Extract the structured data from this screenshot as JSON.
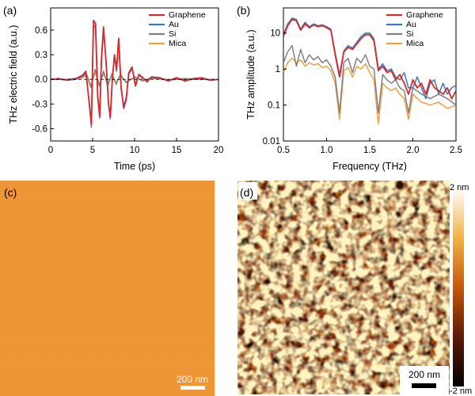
{
  "chart_data": [
    {
      "panel": "(a)",
      "type": "line",
      "xlabel": "Time (ps)",
      "ylabel": "THz electric field (a.u.)",
      "xlim": [
        0,
        20
      ],
      "ylim": [
        -0.75,
        0.87
      ],
      "xticks": [
        0,
        5,
        10,
        15,
        20
      ],
      "yticks": [
        -0.6,
        -0.3,
        0.0,
        0.3,
        0.6
      ],
      "ytick_labels": [
        "-0.6",
        "-0.3",
        "0.0",
        "0.3",
        "0.6"
      ],
      "legend_position": "top-right",
      "series": [
        {
          "name": "Graphene",
          "color": "#d62a2a",
          "x": [
            0,
            1,
            2,
            3,
            3.8,
            4.2,
            4.6,
            4.85,
            5.1,
            5.35,
            5.6,
            5.85,
            6.05,
            6.3,
            6.6,
            6.9,
            7.1,
            7.35,
            7.6,
            7.85,
            8.1,
            8.4,
            8.7,
            9,
            9.3,
            9.7,
            10.1,
            10.5,
            11,
            11.5,
            12,
            13,
            14,
            15,
            16,
            17,
            18,
            19,
            20
          ],
          "y": [
            0,
            0.01,
            -0.01,
            0.01,
            0.05,
            0.1,
            -0.3,
            -0.55,
            0.72,
            0.68,
            -0.2,
            -0.45,
            0.25,
            0.64,
            0.2,
            -0.3,
            -0.46,
            0.0,
            0.3,
            0.12,
            0.5,
            -0.1,
            -0.35,
            -0.25,
            0.08,
            0.15,
            -0.08,
            0.06,
            0.02,
            -0.03,
            0.03,
            0.02,
            -0.02,
            0.02,
            -0.02,
            0.01,
            0.02,
            -0.01,
            0.0
          ]
        },
        {
          "name": "Au",
          "color": "#3b78c0",
          "x": [
            0,
            1,
            2,
            3,
            3.8,
            4.2,
            4.6,
            4.85,
            5.1,
            5.35,
            5.6,
            5.85,
            6.05,
            6.3,
            6.6,
            6.9,
            7.1,
            7.35,
            7.6,
            7.85,
            8.1,
            8.4,
            8.7,
            9,
            9.3,
            9.7,
            10.1,
            10.5,
            11,
            11.5,
            12,
            13,
            14,
            15,
            16,
            17,
            18,
            19,
            20
          ],
          "y": [
            0,
            0.0,
            -0.01,
            0.0,
            0.04,
            0.08,
            -0.28,
            -0.58,
            0.66,
            0.63,
            -0.22,
            -0.47,
            0.2,
            0.6,
            0.22,
            -0.28,
            -0.48,
            -0.02,
            0.28,
            0.1,
            0.45,
            -0.12,
            -0.33,
            -0.22,
            0.06,
            0.13,
            -0.06,
            0.05,
            0.01,
            -0.02,
            0.02,
            0.01,
            -0.01,
            0.01,
            -0.01,
            0.0,
            0.01,
            -0.01,
            0.0
          ]
        },
        {
          "name": "Si",
          "color": "#808080",
          "x": [
            0,
            2,
            3.5,
            4.3,
            4.8,
            5.3,
            5.8,
            6.3,
            6.8,
            7.3,
            7.8,
            8.3,
            9,
            10,
            11,
            12,
            14,
            16,
            18,
            20
          ],
          "y": [
            0,
            0.0,
            0.02,
            0.06,
            -0.1,
            0.12,
            -0.08,
            0.1,
            -0.08,
            0.07,
            -0.06,
            0.06,
            -0.04,
            0.03,
            -0.02,
            0.02,
            -0.01,
            0.01,
            0.0,
            0.0
          ]
        },
        {
          "name": "Mica",
          "color": "#f0a042",
          "x": [
            0,
            2,
            3.5,
            4.3,
            4.8,
            5.3,
            5.8,
            6.3,
            6.8,
            7.3,
            7.8,
            8.3,
            9,
            10,
            11,
            12,
            14,
            16,
            18,
            20
          ],
          "y": [
            0,
            0.0,
            0.01,
            0.04,
            -0.07,
            0.08,
            -0.06,
            0.07,
            -0.05,
            0.05,
            -0.04,
            0.04,
            -0.03,
            0.02,
            -0.01,
            0.01,
            0.0,
            0.01,
            0.0,
            0.0
          ]
        }
      ]
    },
    {
      "panel": "(b)",
      "type": "line",
      "yscale": "log",
      "xlabel": "Frequency (THz)",
      "ylabel": "THz amplitude (a.u.)",
      "xlim": [
        0.5,
        2.5
      ],
      "ylim": [
        0.01,
        50
      ],
      "xticks": [
        0.5,
        1.0,
        1.5,
        2.0,
        2.5
      ],
      "xtick_labels": [
        "0.5",
        "1.0",
        "1.5",
        "2.0",
        "2.5"
      ],
      "yticks": [
        0.01,
        0.1,
        1,
        10
      ],
      "ytick_labels": [
        "0.01",
        "0.1",
        "1",
        "10"
      ],
      "legend_position": "top-right",
      "series": [
        {
          "name": "Graphene",
          "color": "#d62a2a",
          "x": [
            0.5,
            0.55,
            0.6,
            0.65,
            0.7,
            0.75,
            0.8,
            0.85,
            0.9,
            0.95,
            1.0,
            1.05,
            1.1,
            1.15,
            1.2,
            1.25,
            1.3,
            1.35,
            1.4,
            1.45,
            1.5,
            1.55,
            1.6,
            1.65,
            1.7,
            1.75,
            1.8,
            1.85,
            1.9,
            1.95,
            2.0,
            2.05,
            2.1,
            2.15,
            2.2,
            2.25,
            2.3,
            2.35,
            2.4,
            2.45,
            2.5
          ],
          "y": [
            8,
            16,
            24,
            22,
            12,
            18,
            14,
            17,
            15,
            16,
            14,
            12,
            2.5,
            0.6,
            3,
            4,
            3.5,
            5,
            7,
            9,
            9,
            6,
            0.9,
            1.2,
            0.8,
            0.9,
            0.5,
            0.7,
            0.4,
            0.2,
            0.5,
            0.3,
            0.4,
            0.2,
            0.5,
            0.3,
            0.25,
            0.2,
            0.3,
            0.15,
            0.25
          ]
        },
        {
          "name": "Au",
          "color": "#3b78c0",
          "x": [
            0.5,
            0.55,
            0.6,
            0.65,
            0.7,
            0.75,
            0.8,
            0.85,
            0.9,
            0.95,
            1.0,
            1.05,
            1.1,
            1.15,
            1.2,
            1.25,
            1.3,
            1.35,
            1.4,
            1.45,
            1.5,
            1.55,
            1.6,
            1.65,
            1.7,
            1.75,
            1.8,
            1.85,
            1.9,
            1.95,
            2.0,
            2.05,
            2.1,
            2.15,
            2.2,
            2.25,
            2.3,
            2.35,
            2.4,
            2.45,
            2.5
          ],
          "y": [
            9,
            18,
            26,
            24,
            13,
            20,
            15,
            18,
            16,
            17,
            15,
            13,
            2.8,
            0.7,
            3.2,
            4.5,
            3.8,
            5.5,
            8,
            10,
            10,
            7,
            1.0,
            1.4,
            0.9,
            1.0,
            0.6,
            0.5,
            0.8,
            0.3,
            0.3,
            0.6,
            0.3,
            0.15,
            0.4,
            0.5,
            0.2,
            0.4,
            0.2,
            0.3,
            0.35
          ]
        },
        {
          "name": "Si",
          "color": "#808080",
          "x": [
            0.5,
            0.55,
            0.6,
            0.65,
            0.7,
            0.75,
            0.8,
            0.85,
            0.9,
            0.95,
            1.0,
            1.05,
            1.1,
            1.15,
            1.2,
            1.25,
            1.3,
            1.35,
            1.4,
            1.45,
            1.5,
            1.55,
            1.6,
            1.65,
            1.7,
            1.75,
            1.8,
            1.85,
            1.9,
            1.95,
            2.0,
            2.1,
            2.2,
            2.3,
            2.4,
            2.5
          ],
          "y": [
            1.5,
            3,
            4.5,
            1.2,
            3.5,
            1.5,
            2.5,
            1.8,
            2.2,
            1.5,
            1.8,
            1.2,
            0.6,
            0.06,
            1.5,
            2.0,
            0.8,
            2.0,
            1.5,
            2.5,
            1.2,
            1.0,
            0.06,
            0.7,
            0.5,
            0.4,
            0.5,
            0.3,
            0.25,
            0.06,
            0.3,
            0.2,
            0.15,
            0.2,
            0.15,
            0.1
          ]
        },
        {
          "name": "Mica",
          "color": "#f0a042",
          "x": [
            0.5,
            0.55,
            0.6,
            0.65,
            0.7,
            0.75,
            0.8,
            0.85,
            0.9,
            0.95,
            1.0,
            1.05,
            1.1,
            1.15,
            1.2,
            1.25,
            1.3,
            1.35,
            1.4,
            1.45,
            1.5,
            1.55,
            1.6,
            1.65,
            1.7,
            1.75,
            1.8,
            1.85,
            1.9,
            1.95,
            2.0,
            2.1,
            2.2,
            2.3,
            2.4,
            2.5
          ],
          "y": [
            0.8,
            1.5,
            2,
            1.5,
            1.8,
            1.2,
            1.5,
            1.3,
            1.4,
            1.1,
            1.2,
            0.9,
            0.4,
            0.04,
            0.9,
            1.1,
            0.6,
            1.2,
            1.0,
            1.4,
            0.8,
            0.5,
            0.03,
            0.4,
            0.3,
            0.25,
            0.3,
            0.2,
            0.15,
            0.04,
            0.2,
            0.12,
            0.1,
            0.12,
            0.08,
            0.1
          ]
        }
      ]
    },
    {
      "panel": "(c)",
      "type": "image",
      "scale_bar": "200 nm",
      "colors": {
        "base": "#f09838"
      }
    },
    {
      "panel": "(d)",
      "type": "heatmap",
      "scale_bar": "200 nm",
      "colorbar": {
        "max_label": "2 nm",
        "min_label": "-2 nm",
        "range": [
          -2,
          2
        ]
      },
      "colors": {
        "dark": "#140805",
        "mid": "#d46a10",
        "light": "#fff6c8"
      }
    }
  ]
}
